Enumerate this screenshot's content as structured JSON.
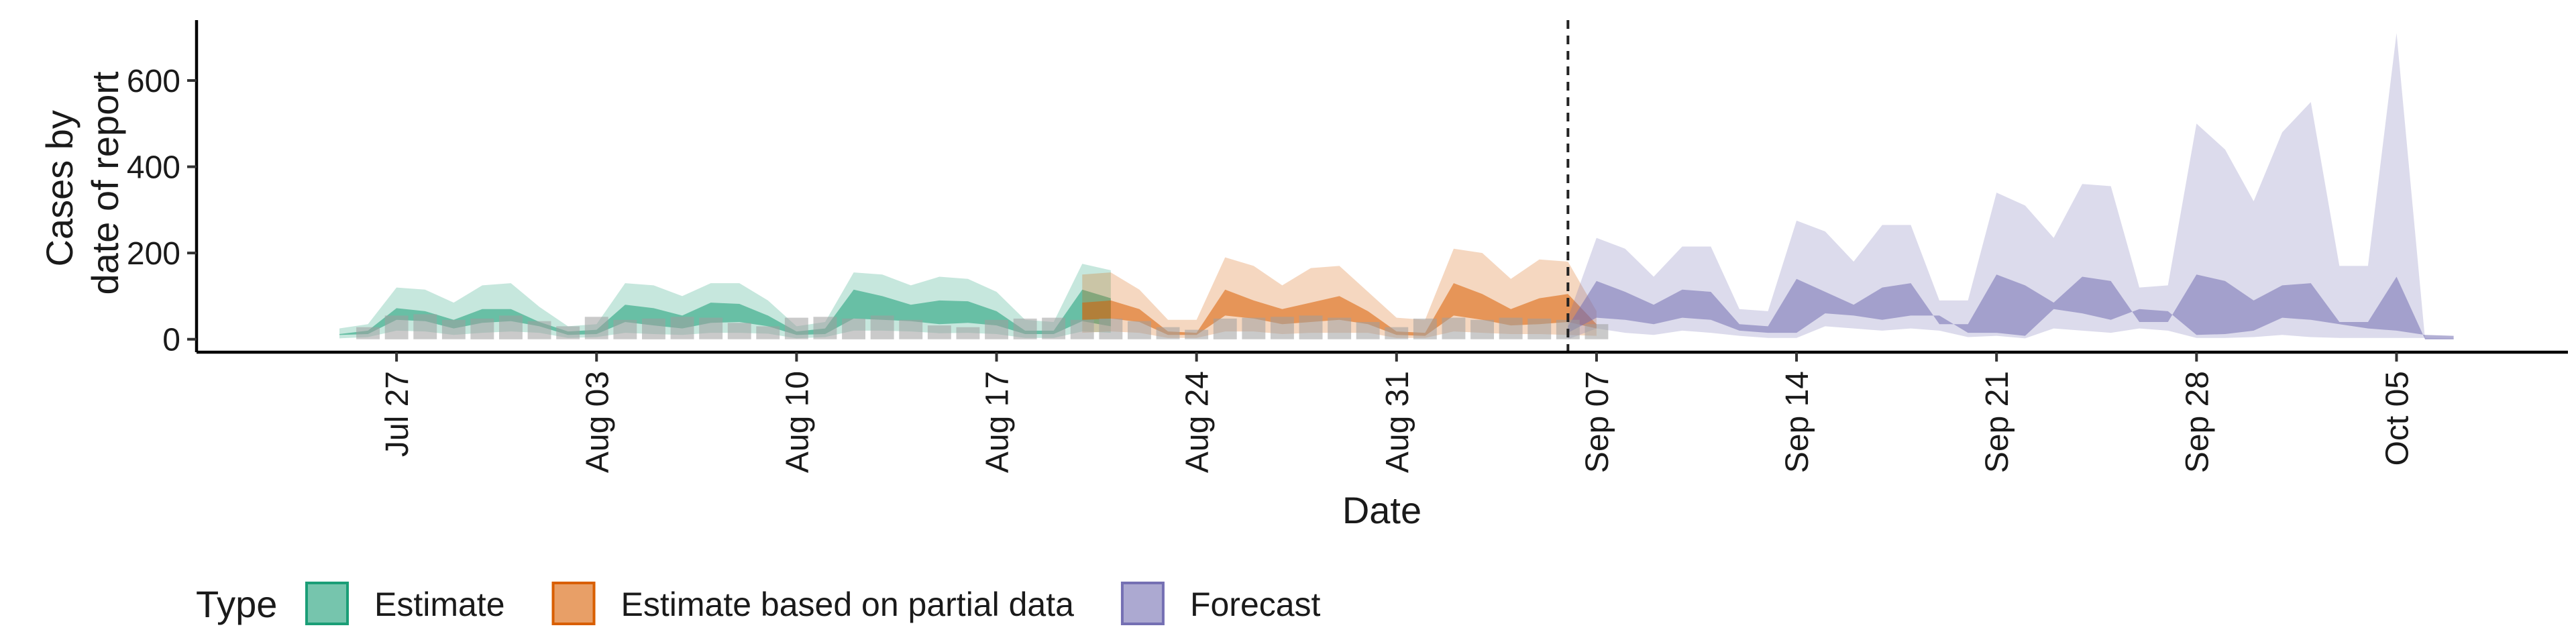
{
  "chart_data": {
    "type": "area",
    "xlabel": "Date",
    "ylabel_lines": [
      "Cases by",
      "date of report"
    ],
    "x_range": [
      "2021-07-20",
      "2021-10-11"
    ],
    "ylim": [
      -30,
      740
    ],
    "y_ticks": [
      0,
      200,
      400,
      600
    ],
    "x_ticks": [
      {
        "date": "2021-07-27",
        "label": "Jul 27"
      },
      {
        "date": "2021-08-03",
        "label": "Aug 03"
      },
      {
        "date": "2021-08-10",
        "label": "Aug 10"
      },
      {
        "date": "2021-08-17",
        "label": "Aug 17"
      },
      {
        "date": "2021-08-24",
        "label": "Aug 24"
      },
      {
        "date": "2021-08-31",
        "label": "Aug 31"
      },
      {
        "date": "2021-09-07",
        "label": "Sep 07"
      },
      {
        "date": "2021-09-14",
        "label": "Sep 14"
      },
      {
        "date": "2021-09-21",
        "label": "Sep 21"
      },
      {
        "date": "2021-09-28",
        "label": "Sep 28"
      },
      {
        "date": "2021-10-05",
        "label": "Oct 05"
      }
    ],
    "forecast_start": "2021-09-06",
    "grid": false,
    "legend": {
      "title": "Type",
      "position": "bottom",
      "entries": [
        {
          "label": "Estimate",
          "fill": "#1b9e77"
        },
        {
          "label": "Estimate based on partial data",
          "fill": "#d95f02"
        },
        {
          "label": "Forecast",
          "fill": "#7570b3"
        }
      ]
    },
    "observed_cases": {
      "start_date": "2021-07-26",
      "values": [
        28,
        55,
        58,
        45,
        48,
        55,
        42,
        30,
        52,
        45,
        48,
        52,
        50,
        38,
        30,
        50,
        52,
        48,
        55,
        45,
        32,
        28,
        45,
        48,
        50,
        45,
        48,
        42,
        28,
        22,
        48,
        50,
        52,
        55,
        50,
        40,
        28,
        48,
        50,
        45,
        50,
        48,
        45,
        35
      ]
    },
    "series": [
      {
        "name": "Estimate",
        "color": "#1b9e77",
        "start_date": "2021-07-25",
        "lower90": [
          2,
          5,
          20,
          18,
          10,
          15,
          18,
          15,
          3,
          5,
          15,
          12,
          10,
          15,
          15,
          13,
          2,
          5,
          20,
          20,
          18,
          14,
          15,
          12,
          3,
          3,
          18,
          15
        ],
        "lower50": [
          10,
          12,
          45,
          42,
          25,
          38,
          42,
          30,
          10,
          12,
          40,
          32,
          25,
          38,
          40,
          30,
          10,
          12,
          48,
          45,
          42,
          35,
          38,
          32,
          12,
          12,
          42,
          30
        ],
        "upper50": [
          12,
          20,
          72,
          65,
          45,
          70,
          70,
          40,
          18,
          22,
          80,
          72,
          55,
          85,
          82,
          55,
          18,
          25,
          115,
          100,
          80,
          90,
          88,
          65,
          20,
          20,
          115,
          95
        ],
        "upper90": [
          25,
          35,
          120,
          115,
          85,
          125,
          130,
          75,
          30,
          35,
          130,
          125,
          100,
          130,
          130,
          90,
          30,
          40,
          155,
          150,
          125,
          145,
          140,
          110,
          45,
          40,
          175,
          160
        ]
      },
      {
        "name": "Estimate based on partial data",
        "color": "#d95f02",
        "start_date": "2021-08-20",
        "lower90": [
          15,
          18,
          15,
          3,
          3,
          18,
          18,
          12,
          15,
          15,
          15,
          3,
          3,
          18,
          15,
          12,
          12,
          10,
          8
        ],
        "lower50": [
          45,
          48,
          40,
          10,
          10,
          55,
          48,
          35,
          40,
          45,
          35,
          10,
          8,
          55,
          45,
          32,
          35,
          40,
          25
        ],
        "upper50": [
          85,
          90,
          70,
          18,
          15,
          115,
          90,
          70,
          85,
          100,
          65,
          18,
          15,
          130,
          105,
          70,
          95,
          105,
          35
        ],
        "upper90": [
          150,
          155,
          115,
          45,
          45,
          190,
          170,
          125,
          165,
          170,
          110,
          50,
          45,
          210,
          200,
          140,
          185,
          180,
          65
        ]
      },
      {
        "name": "Forecast",
        "color": "#7570b3",
        "start_date": "2021-09-06",
        "lower90": [
          0,
          25,
          15,
          10,
          20,
          15,
          8,
          3,
          3,
          30,
          25,
          20,
          25,
          20,
          5,
          8,
          2,
          25,
          20,
          15,
          25,
          20,
          3,
          3,
          5,
          10,
          5,
          3,
          3,
          3,
          3,
          2
        ],
        "lower50": [
          15,
          50,
          45,
          35,
          50,
          45,
          20,
          15,
          15,
          60,
          55,
          45,
          55,
          55,
          15,
          15,
          8,
          70,
          60,
          45,
          70,
          65,
          10,
          12,
          20,
          50,
          45,
          35,
          25,
          20,
          10,
          8
        ],
        "upper50": [
          30,
          135,
          110,
          80,
          115,
          110,
          35,
          30,
          140,
          110,
          80,
          120,
          130,
          35,
          35,
          150,
          125,
          85,
          145,
          135,
          40,
          40,
          150,
          135,
          90,
          125,
          130,
          40,
          40,
          145,
          0,
          0
        ],
        "upper90": [
          50,
          235,
          210,
          145,
          215,
          215,
          70,
          65,
          275,
          250,
          180,
          265,
          265,
          90,
          90,
          340,
          310,
          235,
          360,
          355,
          120,
          125,
          500,
          440,
          320,
          480,
          550,
          170,
          170,
          710,
          0,
          0
        ]
      }
    ]
  }
}
